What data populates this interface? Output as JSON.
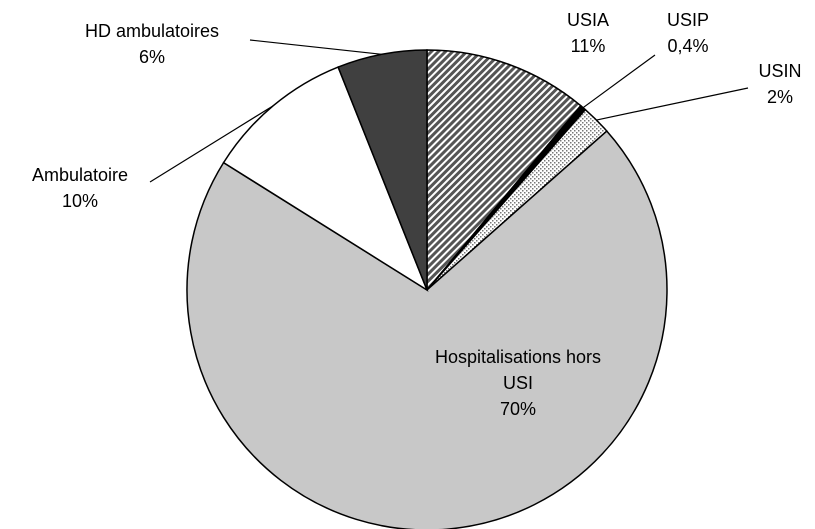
{
  "chart_data": {
    "type": "pie",
    "categories": [
      "USIA",
      "USIP",
      "USIN",
      "Hospitalisations hors USI",
      "Ambulatoire",
      "HD ambulatoires"
    ],
    "values": [
      11,
      0.4,
      2,
      70,
      10,
      6
    ],
    "value_labels": [
      "11%",
      "0,4%",
      "2%",
      "70%",
      "10%",
      "6%"
    ],
    "colors": [
      "#555555",
      "#000000",
      "#777777",
      "#c8c8c8",
      "#ffffff",
      "#404040"
    ],
    "fills": [
      "hatch",
      "solid",
      "dots",
      "solid",
      "solid",
      "solid"
    ]
  }
}
